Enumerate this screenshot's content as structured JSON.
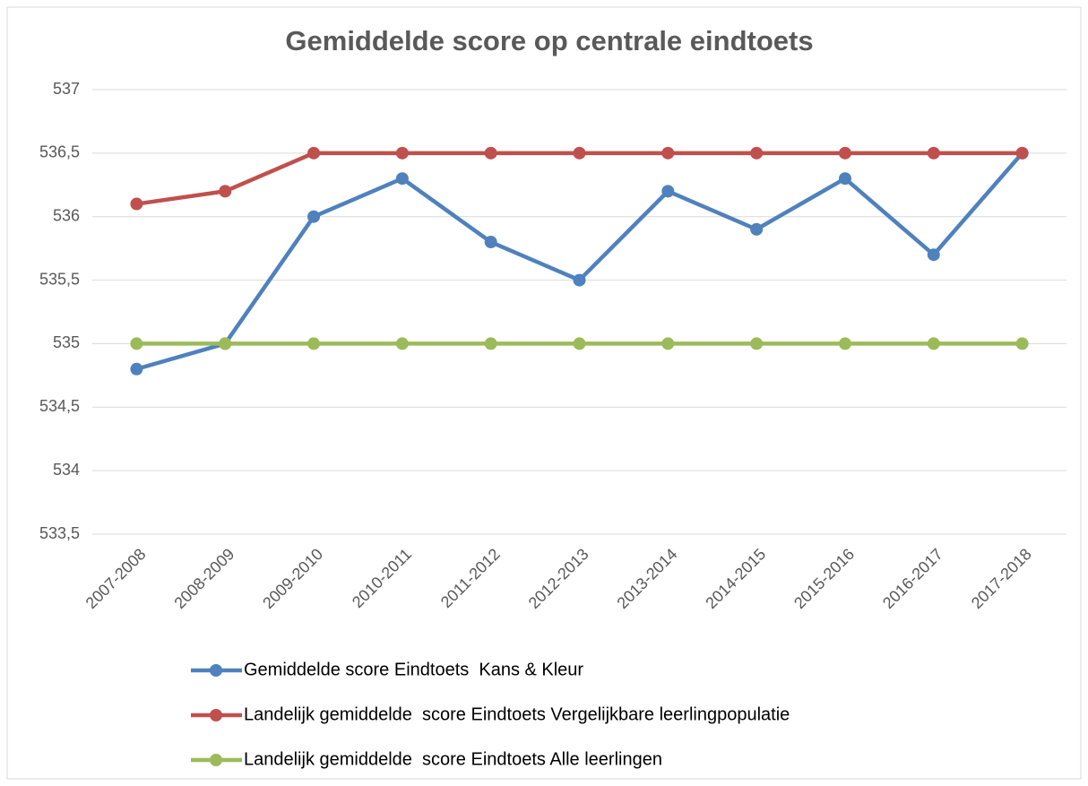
{
  "chart_data": {
    "type": "line",
    "title": "Gemiddelde score op centrale eindtoets",
    "categories": [
      "2007-2008",
      "2008-2009",
      "2009-2010",
      "2010-2011",
      "2011-2012",
      "2012-2013",
      "2013-2014",
      "2014-2015",
      "2015-2016",
      "2016-2017",
      "2017-2018"
    ],
    "series": [
      {
        "name": "Gemiddelde score Eindtoets  Kans & Kleur",
        "color": "#4f81bd",
        "values": [
          534.8,
          535,
          536,
          536.3,
          535.8,
          535.5,
          536.2,
          535.9,
          536.3,
          535.7,
          536.5
        ]
      },
      {
        "name": "Landelijk gemiddelde  score Eindtoets Vergelijkbare leerlingpopulatie",
        "color": "#c0504d",
        "values": [
          536.1,
          536.2,
          536.5,
          536.5,
          536.5,
          536.5,
          536.5,
          536.5,
          536.5,
          536.5,
          536.5
        ]
      },
      {
        "name": "Landelijk gemiddelde  score Eindtoets Alle leerlingen",
        "color": "#9bbb59",
        "values": [
          535,
          535,
          535,
          535,
          535,
          535,
          535,
          535,
          535,
          535,
          535
        ]
      }
    ],
    "ylim": [
      533.5,
      537
    ],
    "yticks": [
      {
        "value": 533.5,
        "label": "533,5"
      },
      534,
      {
        "value": 534.5,
        "label": "534,5"
      },
      535,
      {
        "value": 535.5,
        "label": "535,5"
      },
      536,
      {
        "value": 536.5,
        "label": "536,5"
      },
      537
    ],
    "grid": true,
    "legend": "bottom"
  }
}
